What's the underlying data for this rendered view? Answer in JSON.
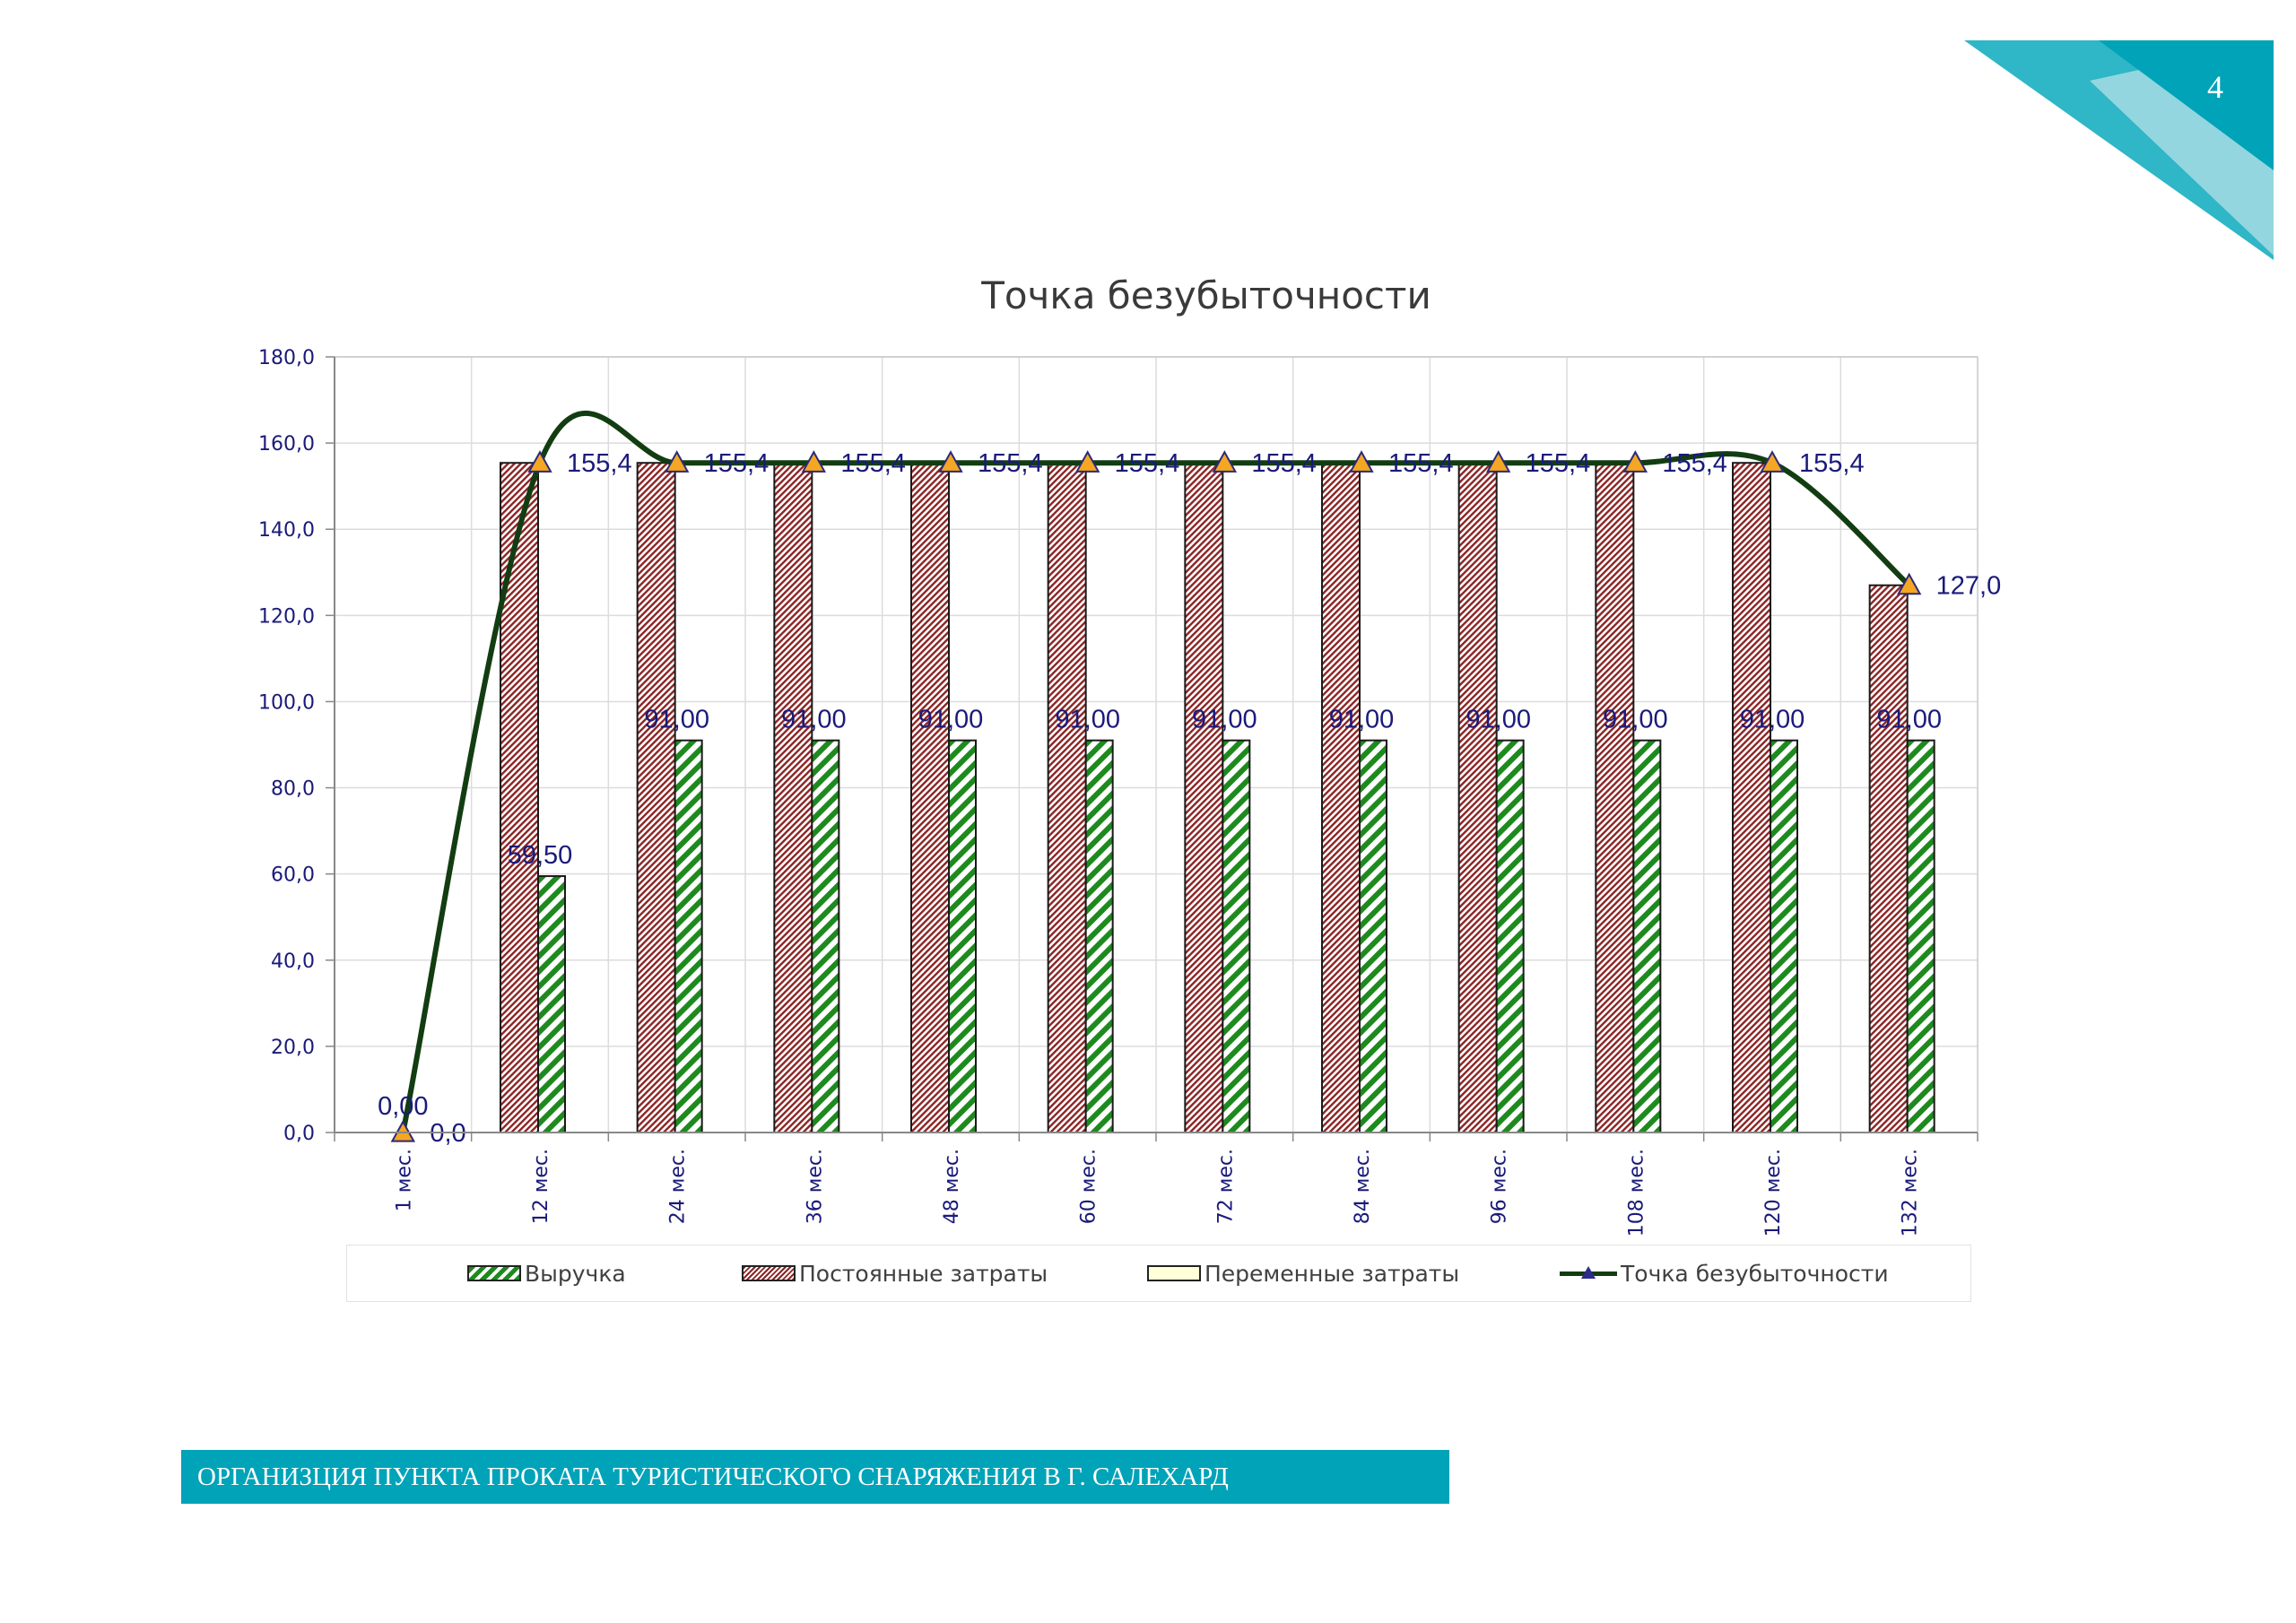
{
  "page": {
    "number": "4",
    "accent_color": "#00a3b8",
    "footer_text": "ОРГАНИЗЦИЯ ПУНКТА ПРОКАТА ТУРИСТИЧЕСКОГО СНАРЯЖЕНИЯ В Г. САЛЕХАРД"
  },
  "chart_data": {
    "type": "bar",
    "title": "Точка безубыточности",
    "xlabel": "",
    "ylabel": "",
    "ylim": [
      0,
      180
    ],
    "y_ticks": [
      "0,0",
      "20,0",
      "40,0",
      "60,0",
      "80,0",
      "100,0",
      "120,0",
      "140,0",
      "160,0",
      "180,0"
    ],
    "grid": true,
    "legend_position": "bottom",
    "categories": [
      "1 мес.",
      "12 мес.",
      "24 мес.",
      "36 мес.",
      "48 мес.",
      "60 мес.",
      "72 мес.",
      "84 мес.",
      "96 мес.",
      "108 мес.",
      "120 мес.",
      "132 мес."
    ],
    "series": [
      {
        "name": "Выручка",
        "kind": "bar",
        "color": "#1e8a1e",
        "values": [
          0,
          59.5,
          91,
          91,
          91,
          91,
          91,
          91,
          91,
          91,
          91,
          91
        ],
        "labels": [
          "0,00",
          "59,50",
          "91,00",
          "91,00",
          "91,00",
          "91,00",
          "91,00",
          "91,00",
          "91,00",
          "91,00",
          "91,00",
          "91,00"
        ]
      },
      {
        "name": "Постоянные затраты",
        "kind": "bar",
        "color": "#8b2424",
        "values": [
          0,
          155.4,
          155.4,
          155.4,
          155.4,
          155.4,
          155.4,
          155.4,
          155.4,
          155.4,
          155.4,
          127.0
        ]
      },
      {
        "name": "Переменные затраты",
        "kind": "bar",
        "color": "#ffffd8",
        "values": [
          0,
          0,
          0,
          0,
          0,
          0,
          0,
          0,
          0,
          0,
          0,
          0
        ]
      },
      {
        "name": "Точка безубыточности",
        "kind": "line",
        "color": "#123d12",
        "marker_color": "#f5a623",
        "values": [
          0,
          155.4,
          155.4,
          155.4,
          155.4,
          155.4,
          155.4,
          155.4,
          155.4,
          155.4,
          155.4,
          127.0
        ],
        "labels": [
          "0,0",
          "155,4",
          "155,4",
          "155,4",
          "155,4",
          "155,4",
          "155,4",
          "155,4",
          "155,4",
          "155,4",
          "155,4",
          "127,0"
        ]
      }
    ]
  }
}
